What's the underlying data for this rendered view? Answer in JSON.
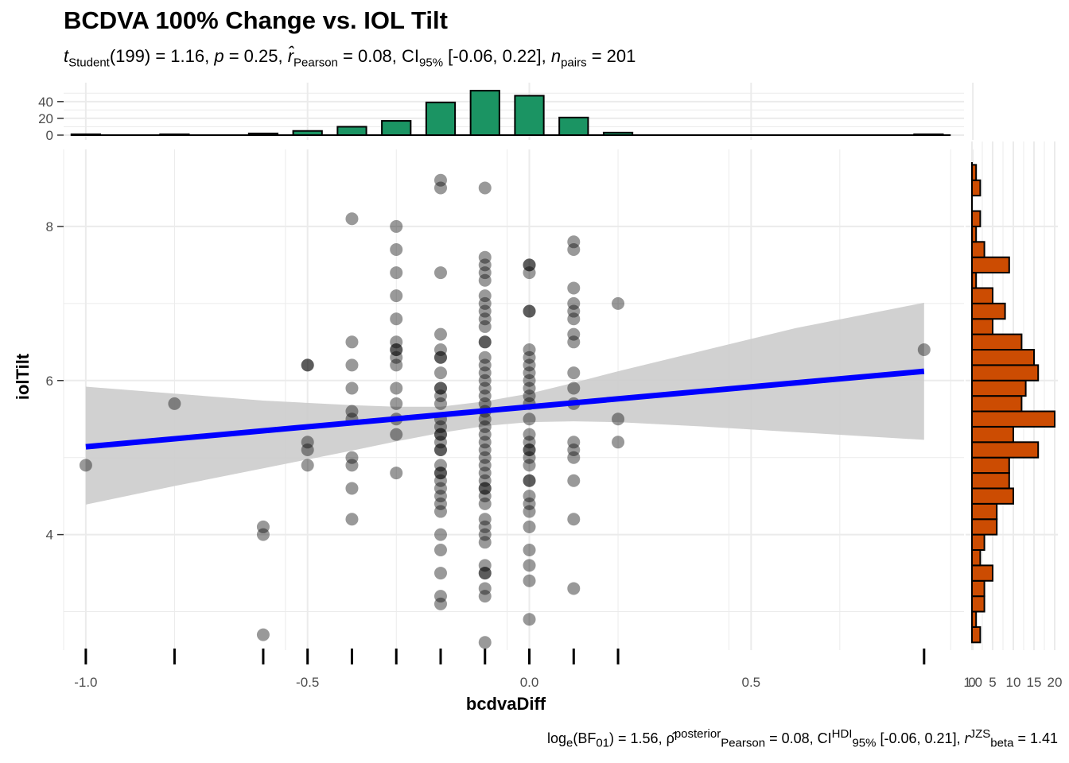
{
  "title": "BCDVA 100% Change vs. IOL Tilt",
  "subtitle": {
    "t_label": "t",
    "t_sub": "Student",
    "t_value": "(199) = 1.16, ",
    "p_label": "p",
    "p_value": " = 0.25, ",
    "r_label": "r̂",
    "r_sub": "Pearson",
    "r_value": " = 0.08, CI",
    "ci_sub": "95%",
    "ci_value": " [-0.06, 0.22], ",
    "n_label": "n",
    "n_sub": "pairs",
    "n_value": " = 201"
  },
  "caption": {
    "log": "log",
    "log_sub": "e",
    "bf": "(BF",
    "bf_sub": "01",
    "bf_value": ") = 1.56, ",
    "rho": "ρ̂",
    "rho_sup": "posterior",
    "rho_sub": "Pearson",
    "rho_value": " = 0.08, CI",
    "ci_sup": "HDI",
    "ci_sub": "95%",
    "ci_value": " [-0.06, 0.21], ",
    "r": "r",
    "r_sup": "JZS",
    "r_sub": "beta",
    "r_value": " = 1.41"
  },
  "chart_data": {
    "type": "scatter",
    "xlabel": "bcdvaDiff",
    "ylabel": "iolTilt",
    "xlim": [
      -1.05,
      0.98
    ],
    "ylim": [
      2.5,
      9.0
    ],
    "xticks": [
      -1.0,
      -0.5,
      0.0,
      0.5,
      1.0
    ],
    "xtick_labels": [
      "-1.0",
      "-0.5",
      "0.0",
      "0.5",
      "1.0"
    ],
    "yticks": [
      4,
      6,
      8
    ],
    "ytick_labels": [
      "4",
      "6",
      "8"
    ],
    "grid": true,
    "colors": {
      "points": "#808080",
      "fit_line": "#0000ff",
      "ci_band": "#cccccc",
      "x_hist": "#1b9463",
      "y_hist": "#cc4c02",
      "grid": "#ebebeb"
    },
    "points": [
      [
        -1.0,
        4.9
      ],
      [
        -0.8,
        5.7
      ],
      [
        -0.6,
        4.1
      ],
      [
        -0.6,
        4.0
      ],
      [
        -0.6,
        2.7
      ],
      [
        -0.5,
        6.2
      ],
      [
        -0.5,
        6.2
      ],
      [
        -0.5,
        5.2
      ],
      [
        -0.5,
        5.1
      ],
      [
        -0.5,
        4.9
      ],
      [
        -0.4,
        8.1
      ],
      [
        -0.4,
        6.5
      ],
      [
        -0.4,
        6.2
      ],
      [
        -0.4,
        5.9
      ],
      [
        -0.4,
        5.6
      ],
      [
        -0.4,
        5.5
      ],
      [
        -0.4,
        5.0
      ],
      [
        -0.4,
        4.9
      ],
      [
        -0.4,
        4.6
      ],
      [
        -0.4,
        4.2
      ],
      [
        -0.3,
        8.0
      ],
      [
        -0.3,
        7.7
      ],
      [
        -0.3,
        7.4
      ],
      [
        -0.3,
        7.1
      ],
      [
        -0.3,
        6.8
      ],
      [
        -0.3,
        6.5
      ],
      [
        -0.3,
        6.4
      ],
      [
        -0.3,
        6.4
      ],
      [
        -0.3,
        6.3
      ],
      [
        -0.3,
        6.2
      ],
      [
        -0.3,
        5.9
      ],
      [
        -0.3,
        5.7
      ],
      [
        -0.3,
        5.5
      ],
      [
        -0.3,
        5.3
      ],
      [
        -0.3,
        4.8
      ],
      [
        -0.2,
        8.6
      ],
      [
        -0.2,
        8.5
      ],
      [
        -0.2,
        7.4
      ],
      [
        -0.2,
        6.6
      ],
      [
        -0.2,
        6.4
      ],
      [
        -0.2,
        6.3
      ],
      [
        -0.2,
        6.3
      ],
      [
        -0.2,
        6.1
      ],
      [
        -0.2,
        5.9
      ],
      [
        -0.2,
        5.9
      ],
      [
        -0.2,
        5.8
      ],
      [
        -0.2,
        5.7
      ],
      [
        -0.2,
        5.5
      ],
      [
        -0.2,
        5.4
      ],
      [
        -0.2,
        5.3
      ],
      [
        -0.2,
        5.3
      ],
      [
        -0.2,
        5.2
      ],
      [
        -0.2,
        5.1
      ],
      [
        -0.2,
        5.1
      ],
      [
        -0.2,
        4.9
      ],
      [
        -0.2,
        4.8
      ],
      [
        -0.2,
        4.8
      ],
      [
        -0.2,
        4.7
      ],
      [
        -0.2,
        4.6
      ],
      [
        -0.2,
        4.5
      ],
      [
        -0.2,
        4.4
      ],
      [
        -0.2,
        4.3
      ],
      [
        -0.2,
        4.0
      ],
      [
        -0.2,
        3.8
      ],
      [
        -0.2,
        3.5
      ],
      [
        -0.2,
        3.2
      ],
      [
        -0.2,
        3.1
      ],
      [
        -0.1,
        8.5
      ],
      [
        -0.1,
        7.6
      ],
      [
        -0.1,
        7.5
      ],
      [
        -0.1,
        7.4
      ],
      [
        -0.1,
        7.3
      ],
      [
        -0.1,
        7.1
      ],
      [
        -0.1,
        7.0
      ],
      [
        -0.1,
        6.9
      ],
      [
        -0.1,
        6.8
      ],
      [
        -0.1,
        6.7
      ],
      [
        -0.1,
        6.5
      ],
      [
        -0.1,
        6.5
      ],
      [
        -0.1,
        6.3
      ],
      [
        -0.1,
        6.2
      ],
      [
        -0.1,
        6.1
      ],
      [
        -0.1,
        6.0
      ],
      [
        -0.1,
        5.9
      ],
      [
        -0.1,
        5.8
      ],
      [
        -0.1,
        5.7
      ],
      [
        -0.1,
        5.6
      ],
      [
        -0.1,
        5.5
      ],
      [
        -0.1,
        5.4
      ],
      [
        -0.1,
        5.3
      ],
      [
        -0.1,
        5.2
      ],
      [
        -0.1,
        5.1
      ],
      [
        -0.1,
        5.0
      ],
      [
        -0.1,
        4.9
      ],
      [
        -0.1,
        4.8
      ],
      [
        -0.1,
        4.7
      ],
      [
        -0.1,
        4.6
      ],
      [
        -0.1,
        4.6
      ],
      [
        -0.1,
        4.5
      ],
      [
        -0.1,
        4.4
      ],
      [
        -0.1,
        4.2
      ],
      [
        -0.1,
        4.1
      ],
      [
        -0.1,
        4.0
      ],
      [
        -0.1,
        3.9
      ],
      [
        -0.1,
        3.6
      ],
      [
        -0.1,
        3.5
      ],
      [
        -0.1,
        3.5
      ],
      [
        -0.1,
        3.3
      ],
      [
        -0.1,
        3.2
      ],
      [
        -0.1,
        2.6
      ],
      [
        0.0,
        7.5
      ],
      [
        0.0,
        7.5
      ],
      [
        0.0,
        7.4
      ],
      [
        0.0,
        6.9
      ],
      [
        0.0,
        6.9
      ],
      [
        0.0,
        6.4
      ],
      [
        0.0,
        6.3
      ],
      [
        0.0,
        6.2
      ],
      [
        0.0,
        6.1
      ],
      [
        0.0,
        6.0
      ],
      [
        0.0,
        5.9
      ],
      [
        0.0,
        5.8
      ],
      [
        0.0,
        5.7
      ],
      [
        0.0,
        5.5
      ],
      [
        0.0,
        5.3
      ],
      [
        0.0,
        5.2
      ],
      [
        0.0,
        5.1
      ],
      [
        0.0,
        5.1
      ],
      [
        0.0,
        5.0
      ],
      [
        0.0,
        4.9
      ],
      [
        0.0,
        4.7
      ],
      [
        0.0,
        4.7
      ],
      [
        0.0,
        4.5
      ],
      [
        0.0,
        4.4
      ],
      [
        0.0,
        4.3
      ],
      [
        0.0,
        4.1
      ],
      [
        0.0,
        3.8
      ],
      [
        0.0,
        3.6
      ],
      [
        0.0,
        3.4
      ],
      [
        0.0,
        2.9
      ],
      [
        0.1,
        7.8
      ],
      [
        0.1,
        7.7
      ],
      [
        0.1,
        7.2
      ],
      [
        0.1,
        7.0
      ],
      [
        0.1,
        6.9
      ],
      [
        0.1,
        6.8
      ],
      [
        0.1,
        6.6
      ],
      [
        0.1,
        6.5
      ],
      [
        0.1,
        6.1
      ],
      [
        0.1,
        5.9
      ],
      [
        0.1,
        5.7
      ],
      [
        0.1,
        5.2
      ],
      [
        0.1,
        5.1
      ],
      [
        0.1,
        5.0
      ],
      [
        0.1,
        4.7
      ],
      [
        0.1,
        4.2
      ],
      [
        0.1,
        3.3
      ],
      [
        0.2,
        7.0
      ],
      [
        0.2,
        5.5
      ],
      [
        0.2,
        5.2
      ],
      [
        0.89,
        6.4
      ]
    ],
    "fit": {
      "x": [
        -1.0,
        0.89
      ],
      "y": [
        5.14,
        6.12
      ]
    },
    "ci_band": {
      "x": [
        -1.0,
        -0.8,
        -0.6,
        -0.4,
        -0.3,
        -0.2,
        -0.1,
        0.0,
        0.1,
        0.2,
        0.4,
        0.6,
        0.89
      ],
      "lower": [
        4.39,
        4.63,
        4.86,
        5.09,
        5.21,
        5.32,
        5.41,
        5.46,
        5.47,
        5.46,
        5.4,
        5.33,
        5.23
      ],
      "upper": [
        5.92,
        5.83,
        5.74,
        5.68,
        5.66,
        5.66,
        5.73,
        5.83,
        5.97,
        6.12,
        6.4,
        6.68,
        7.01
      ]
    },
    "x_histogram": {
      "yticks": [
        0,
        20,
        40
      ],
      "ytick_labels": [
        "0",
        "20",
        "40"
      ],
      "ylim": [
        0,
        55
      ],
      "bins": [
        [
          -1.0,
          1
        ],
        [
          -0.8,
          1
        ],
        [
          -0.6,
          2
        ],
        [
          -0.5,
          5
        ],
        [
          -0.4,
          10
        ],
        [
          -0.3,
          17
        ],
        [
          -0.2,
          39
        ],
        [
          -0.1,
          53
        ],
        [
          0.0,
          47
        ],
        [
          0.1,
          21
        ],
        [
          0.2,
          3
        ],
        [
          0.9,
          1
        ]
      ],
      "bin_width": 0.065
    },
    "y_histogram": {
      "xticks": [
        0,
        5,
        10,
        15,
        20
      ],
      "xtick_labels": [
        "0",
        "5",
        "10",
        "15",
        "20"
      ],
      "xlim": [
        0,
        20
      ],
      "bin_width": 0.2,
      "bins": [
        [
          2.7,
          2
        ],
        [
          2.9,
          1
        ],
        [
          3.1,
          3
        ],
        [
          3.3,
          3
        ],
        [
          3.5,
          5
        ],
        [
          3.7,
          2
        ],
        [
          3.9,
          3
        ],
        [
          4.1,
          6
        ],
        [
          4.3,
          6
        ],
        [
          4.5,
          10
        ],
        [
          4.7,
          9
        ],
        [
          4.9,
          9
        ],
        [
          5.1,
          16
        ],
        [
          5.3,
          10
        ],
        [
          5.5,
          20
        ],
        [
          5.7,
          12
        ],
        [
          5.9,
          13
        ],
        [
          6.1,
          16
        ],
        [
          6.3,
          15
        ],
        [
          6.5,
          12
        ],
        [
          6.7,
          5
        ],
        [
          6.9,
          8
        ],
        [
          7.1,
          5
        ],
        [
          7.3,
          1
        ],
        [
          7.5,
          9
        ],
        [
          7.7,
          3
        ],
        [
          7.9,
          1
        ],
        [
          8.1,
          2
        ],
        [
          8.3,
          0
        ],
        [
          8.5,
          2
        ],
        [
          8.7,
          1
        ]
      ]
    },
    "rug_x": [
      -1.0,
      -0.8,
      -0.6,
      -0.5,
      -0.4,
      -0.3,
      -0.2,
      -0.1,
      0.0,
      0.1,
      0.2,
      0.89
    ]
  }
}
